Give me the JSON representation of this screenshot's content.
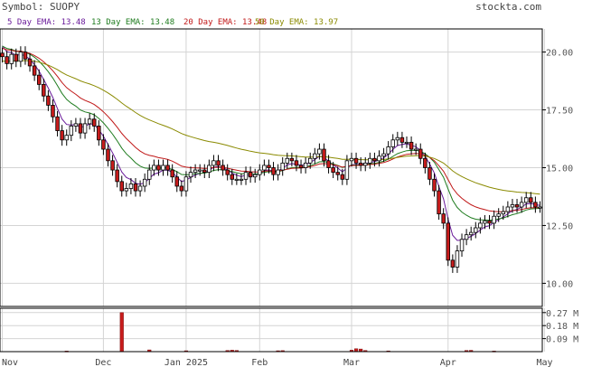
{
  "header": {
    "symbol_label": "Symbol: SUOPY",
    "brand": "stockta.com"
  },
  "ema_labels": [
    {
      "text": "5 Day EMA: 13.48",
      "color": "#6a1b9a"
    },
    {
      "text": "13 Day EMA: 13.48",
      "color": "#1e7b1e"
    },
    {
      "text": "20 Day EMA: 13.48",
      "color": "#c01818"
    },
    {
      "text": "50 Day EMA: 13.97",
      "color": "#8a8a00"
    }
  ],
  "chart_data": {
    "type": "candlestick",
    "symbol": "SUOPY",
    "ylim": [
      9.0,
      21.0
    ],
    "y_ticks": [
      10.0,
      12.5,
      15.0,
      17.5,
      20.0
    ],
    "y_tick_labels": [
      "10.00",
      "12.50",
      "15.00",
      "17.50",
      "20.00"
    ],
    "x_tick_labels": [
      {
        "label": "Nov",
        "index": 0
      },
      {
        "label": "Dec",
        "index": 22
      },
      {
        "label": "Jan 2025",
        "index": 40
      },
      {
        "label": "Feb",
        "index": 56
      },
      {
        "label": "Mar",
        "index": 76
      },
      {
        "label": "Apr",
        "index": 97
      },
      {
        "label": "May",
        "index": 118
      }
    ],
    "grid": true,
    "colors": {
      "up": "#ffffff",
      "down": "#c81c1c",
      "wick": "#000000",
      "volume": "#c81c1c",
      "grid": "#d4d4d4"
    },
    "closes": [
      19.8,
      19.5,
      19.9,
      19.6,
      20.0,
      19.7,
      19.4,
      19.0,
      18.6,
      18.1,
      17.7,
      17.2,
      16.6,
      16.2,
      16.4,
      16.8,
      16.9,
      16.5,
      16.9,
      17.1,
      16.8,
      16.2,
      15.8,
      15.3,
      14.9,
      14.4,
      14.0,
      14.1,
      14.3,
      14.0,
      14.2,
      14.5,
      14.9,
      15.1,
      14.9,
      15.1,
      14.9,
      14.6,
      14.2,
      14.0,
      14.6,
      14.8,
      14.9,
      14.9,
      14.8,
      15.1,
      15.3,
      15.1,
      14.9,
      14.7,
      14.5,
      14.5,
      14.5,
      14.8,
      14.6,
      14.7,
      14.9,
      15.1,
      15.0,
      14.7,
      14.9,
      15.2,
      15.4,
      15.3,
      15.1,
      15.0,
      15.2,
      15.4,
      15.6,
      15.8,
      15.3,
      15.0,
      14.8,
      14.7,
      14.5,
      15.3,
      15.4,
      15.2,
      15.1,
      15.2,
      15.4,
      15.3,
      15.5,
      15.6,
      15.9,
      16.2,
      16.3,
      16.1,
      16.1,
      15.8,
      15.8,
      15.4,
      15.0,
      14.5,
      14.0,
      13.0,
      12.6,
      11.0,
      10.7,
      11.4,
      11.9,
      12.1,
      12.2,
      12.4,
      12.6,
      12.7,
      12.6,
      12.9,
      13.0,
      13.1,
      13.3,
      13.4,
      13.3,
      13.5,
      13.7,
      13.5,
      13.3,
      13.3
    ],
    "volume": [
      {
        "index": 14,
        "value": 0.004
      },
      {
        "index": 26,
        "value": 0.27
      },
      {
        "index": 32,
        "value": 0.012
      },
      {
        "index": 40,
        "value": 0.006
      },
      {
        "index": 49,
        "value": 0.008
      },
      {
        "index": 50,
        "value": 0.01
      },
      {
        "index": 51,
        "value": 0.008
      },
      {
        "index": 60,
        "value": 0.006
      },
      {
        "index": 61,
        "value": 0.007
      },
      {
        "index": 76,
        "value": 0.01
      },
      {
        "index": 77,
        "value": 0.02
      },
      {
        "index": 78,
        "value": 0.018
      },
      {
        "index": 79,
        "value": 0.008
      },
      {
        "index": 84,
        "value": 0.005
      },
      {
        "index": 101,
        "value": 0.008
      },
      {
        "index": 102,
        "value": 0.009
      },
      {
        "index": 107,
        "value": 0.004
      }
    ],
    "volume_ylim": [
      0,
      0.3
    ],
    "volume_ticks": [
      0.09,
      0.18,
      0.27
    ],
    "volume_tick_labels": [
      "0.09 M",
      "0.18 M",
      "0.27 M"
    ],
    "ema_periods": [
      {
        "period": 5,
        "color": "#6a1b9a"
      },
      {
        "period": 13,
        "color": "#1e7b1e"
      },
      {
        "period": 20,
        "color": "#c01818"
      },
      {
        "period": 50,
        "color": "#8a8a00"
      }
    ]
  }
}
